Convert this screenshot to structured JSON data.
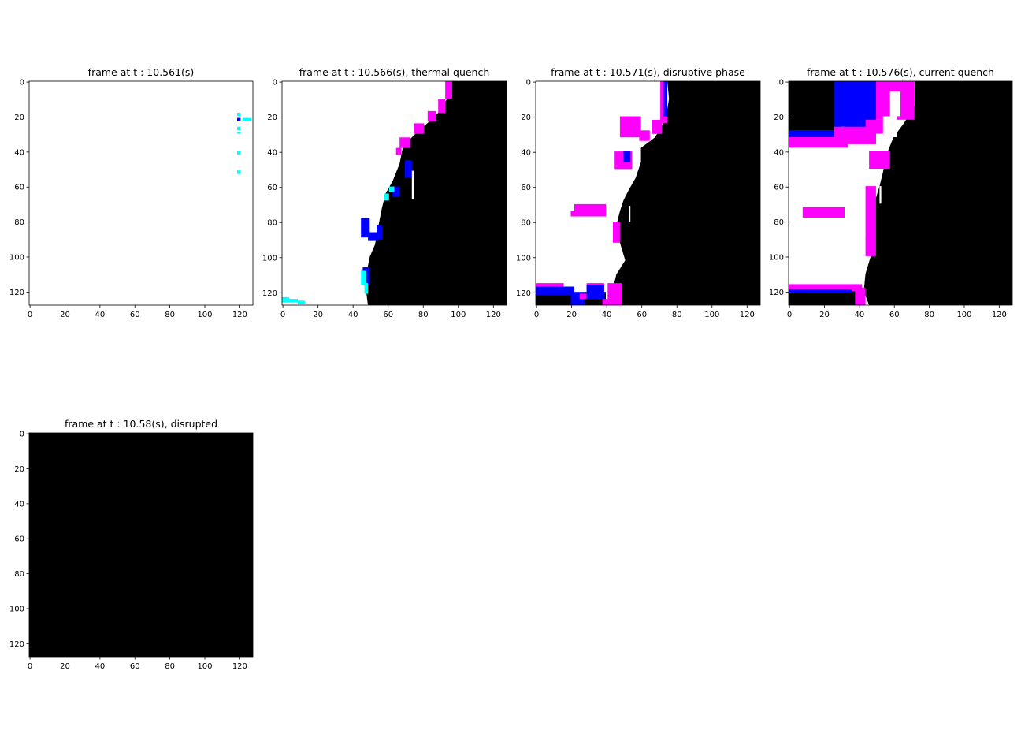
{
  "chart_data": [
    {
      "type": "heatmap",
      "title": "frame at t : 10.561(s)",
      "x_ticks": [
        "0",
        "20",
        "40",
        "60",
        "80",
        "100",
        "120"
      ],
      "y_ticks": [
        "0",
        "20",
        "40",
        "60",
        "80",
        "100",
        "120"
      ],
      "xlim": [
        -0.5,
        127.5
      ],
      "ylim": [
        127.5,
        -0.5
      ],
      "image_size": [
        128,
        128
      ],
      "background": "#ffffff",
      "regions": [
        {
          "color": "#00ffff",
          "rects": [
            [
              119,
              18,
              2,
              2
            ],
            [
              119,
              26,
              2,
              2
            ],
            [
              119,
              29,
              2,
              1
            ],
            [
              119,
              40,
              2,
              2
            ],
            [
              119,
              51,
              2,
              2
            ],
            [
              122,
              21,
              5,
              2
            ]
          ]
        },
        {
          "color": "#0000ff",
          "rects": [
            [
              119,
              21,
              2,
              2
            ]
          ]
        }
      ]
    },
    {
      "type": "heatmap",
      "title": "frame at t : 10.566(s), thermal quench",
      "x_ticks": [
        "0",
        "20",
        "40",
        "60",
        "80",
        "100",
        "120"
      ],
      "y_ticks": [
        "0",
        "20",
        "40",
        "60",
        "80",
        "100",
        "120"
      ],
      "xlim": [
        -0.5,
        127.5
      ],
      "ylim": [
        127.5,
        -0.5
      ],
      "image_size": [
        128,
        128
      ],
      "background": "#ffffff",
      "dark_boundary": [
        [
          95,
          0
        ],
        [
          94,
          10
        ],
        [
          90,
          17
        ],
        [
          85,
          22
        ],
        [
          77,
          29
        ],
        [
          69,
          37
        ],
        [
          67,
          47
        ],
        [
          63,
          57
        ],
        [
          59,
          64
        ],
        [
          57,
          72
        ],
        [
          55,
          82
        ],
        [
          53,
          93
        ],
        [
          50,
          100
        ],
        [
          48,
          110
        ],
        [
          48,
          120
        ],
        [
          49,
          128
        ]
      ],
      "regions": [
        {
          "color": "#ff00ff",
          "rects": [
            [
              93,
              0,
              4,
              10
            ],
            [
              89,
              10,
              4,
              8
            ],
            [
              83,
              17,
              5,
              6
            ],
            [
              75,
              24,
              6,
              6
            ],
            [
              67,
              32,
              6,
              6
            ],
            [
              65,
              38,
              3,
              4
            ]
          ]
        },
        {
          "color": "#0000ff",
          "rects": [
            [
              45,
              78,
              5,
              11
            ],
            [
              49,
              86,
              6,
              5
            ],
            [
              54,
              82,
              3,
              8
            ],
            [
              70,
              45,
              4,
              10
            ],
            [
              63,
              60,
              4,
              6
            ],
            [
              46,
              106,
              4,
              10
            ]
          ]
        },
        {
          "color": "#00ffff",
          "rects": [
            [
              58,
              64,
              3,
              4
            ],
            [
              61,
              60,
              3,
              3
            ],
            [
              45,
              108,
              3,
              8
            ],
            [
              47,
              115,
              2,
              6
            ]
          ]
        },
        {
          "color": "#00ffff",
          "rects": [
            [
              0,
              123,
              4,
              3
            ],
            [
              4,
              124,
              5,
              2
            ],
            [
              9,
              125,
              4,
              2
            ]
          ]
        },
        {
          "color": "#ffffff",
          "rects": [
            [
              74,
              51,
              1,
              16
            ]
          ]
        }
      ]
    },
    {
      "type": "heatmap",
      "title": "frame at t : 10.571(s), disruptive phase",
      "x_ticks": [
        "0",
        "20",
        "40",
        "60",
        "80",
        "100",
        "120"
      ],
      "y_ticks": [
        "0",
        "20",
        "40",
        "60",
        "80",
        "100",
        "120"
      ],
      "xlim": [
        -0.5,
        127.5
      ],
      "ylim": [
        127.5,
        -0.5
      ],
      "image_size": [
        128,
        128
      ],
      "background": "#ffffff",
      "dark_boundary": [
        [
          75,
          0
        ],
        [
          76,
          10
        ],
        [
          74,
          22
        ],
        [
          68,
          32
        ],
        [
          60,
          38
        ],
        [
          60,
          46
        ],
        [
          57,
          55
        ],
        [
          53,
          62
        ],
        [
          50,
          68
        ],
        [
          48,
          74
        ],
        [
          46,
          82
        ],
        [
          48,
          92
        ],
        [
          51,
          102
        ],
        [
          46,
          110
        ],
        [
          44,
          118
        ],
        [
          48,
          128
        ]
      ],
      "regions": [
        {
          "color": "#ff00ff",
          "rects": [
            [
              71,
              0,
              4,
              24
            ],
            [
              66,
              22,
              6,
              8
            ],
            [
              59,
              28,
              6,
              6
            ],
            [
              48,
              20,
              12,
              12
            ],
            [
              45,
              40,
              10,
              10
            ],
            [
              22,
              70,
              18,
              7
            ],
            [
              20,
              74,
              12,
              3
            ],
            [
              44,
              80,
              4,
              12
            ],
            [
              41,
              115,
              8,
              13
            ],
            [
              29,
              115,
              10,
              4
            ]
          ]
        },
        {
          "color": "#0000ff",
          "rects": [
            [
              73,
              0,
              2,
              20
            ],
            [
              50,
              40,
              4,
              6
            ]
          ]
        },
        {
          "color": "#ffffff",
          "rects": [
            [
              53,
              71,
              1,
              9
            ]
          ]
        },
        {
          "color": "#000000",
          "rects": [
            [
              0,
              120,
              22,
              8
            ],
            [
              28,
              120,
              12,
              8
            ]
          ]
        },
        {
          "color": "#0000ff",
          "rects": [
            [
              0,
              117,
              22,
              5
            ],
            [
              20,
              120,
              8,
              8
            ],
            [
              29,
              116,
              10,
              8
            ]
          ]
        },
        {
          "color": "#ff00ff",
          "rects": [
            [
              0,
              115,
              16,
              2
            ],
            [
              25,
              121,
              4,
              3
            ],
            [
              38,
              124,
              5,
              4
            ]
          ]
        }
      ]
    },
    {
      "type": "heatmap",
      "title": "frame at t : 10.576(s), current quench",
      "x_ticks": [
        "0",
        "20",
        "40",
        "60",
        "80",
        "100",
        "120"
      ],
      "y_ticks": [
        "0",
        "20",
        "40",
        "60",
        "80",
        "100",
        "120"
      ],
      "xlim": [
        -0.5,
        127.5
      ],
      "ylim": [
        127.5,
        -0.5
      ],
      "image_size": [
        128,
        128
      ],
      "background": "#ffffff",
      "dark_boundary": [
        [
          72,
          0
        ],
        [
          72,
          14
        ],
        [
          66,
          24
        ],
        [
          60,
          32
        ],
        [
          56,
          42
        ],
        [
          54,
          52
        ],
        [
          52,
          60
        ],
        [
          49,
          70
        ],
        [
          46,
          80
        ],
        [
          44,
          90
        ],
        [
          47,
          100
        ],
        [
          44,
          110
        ],
        [
          43,
          120
        ],
        [
          46,
          128
        ]
      ],
      "regions": [
        {
          "color": "#000000",
          "rects": [
            [
              0,
              0,
              30,
              30
            ],
            [
              0,
              0,
              62,
              4
            ]
          ]
        },
        {
          "color": "#0000ff",
          "rects": [
            [
              26,
              0,
              24,
              26
            ],
            [
              0,
              28,
              30,
              8
            ],
            [
              32,
              10,
              16,
              22
            ]
          ]
        },
        {
          "color": "#ff00ff",
          "rects": [
            [
              50,
              0,
              22,
              22
            ],
            [
              26,
              26,
              24,
              10
            ],
            [
              0,
              32,
              34,
              6
            ],
            [
              44,
              22,
              18,
              8
            ],
            [
              46,
              40,
              12,
              10
            ],
            [
              8,
              72,
              24,
              6
            ],
            [
              44,
              60,
              6,
              40
            ]
          ]
        },
        {
          "color": "#ffffff",
          "rects": [
            [
              58,
              6,
              6,
              14
            ],
            [
              54,
              20,
              8,
              12
            ],
            [
              52,
              60,
              1,
              10
            ]
          ]
        },
        {
          "color": "#000000",
          "rects": [
            [
              0,
              118,
              40,
              10
            ]
          ]
        },
        {
          "color": "#ff00ff",
          "rects": [
            [
              0,
              116,
              42,
              4
            ],
            [
              38,
              118,
              6,
              10
            ]
          ]
        },
        {
          "color": "#0000ff",
          "rects": [
            [
              0,
              119,
              36,
              2
            ]
          ]
        }
      ]
    },
    {
      "type": "heatmap",
      "title": "frame at t : 10.58(s), disrupted",
      "x_ticks": [
        "0",
        "20",
        "40",
        "60",
        "80",
        "100",
        "120"
      ],
      "y_ticks": [
        "0",
        "20",
        "40",
        "60",
        "80",
        "100",
        "120"
      ],
      "xlim": [
        -0.5,
        127.5
      ],
      "ylim": [
        127.5,
        -0.5
      ],
      "image_size": [
        128,
        128
      ],
      "background": "#000000",
      "regions": []
    }
  ]
}
